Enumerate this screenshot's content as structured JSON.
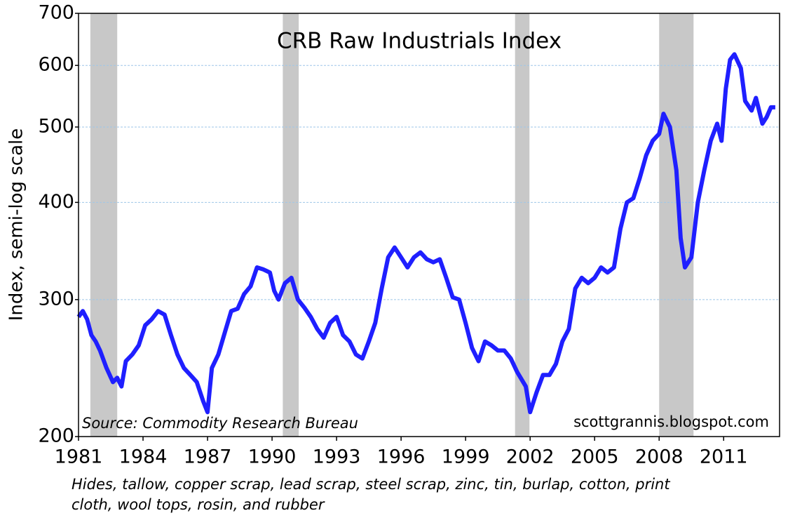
{
  "chart_data": {
    "type": "line",
    "title": "CRB Raw Industrials Index",
    "ylabel": "Index, semi-log scale",
    "source": "Source: Commodity Research Bureau",
    "credit": "scottgrannis.blogspot.com",
    "footnote": "Hides, tallow, copper scrap, lead scrap, steel scrap, zinc, tin, burlap, cotton, print cloth, wool tops, rosin, and rubber",
    "log_scale": true,
    "grid": true,
    "xlim": [
      1981,
      2013.6
    ],
    "ylim": [
      200,
      700
    ],
    "xticks": [
      1981,
      1984,
      1987,
      1990,
      1993,
      1996,
      1999,
      2002,
      2005,
      2008,
      2011
    ],
    "yticks": [
      200,
      300,
      400,
      500,
      600,
      700
    ],
    "shading_color": "#c8c8c8",
    "recessions": [
      [
        1981.55,
        1982.8
      ],
      [
        1990.5,
        1991.24
      ],
      [
        2001.3,
        2001.97
      ],
      [
        2008.0,
        2009.6
      ]
    ],
    "series": [
      {
        "name": "CRB Raw Industrials Index",
        "color": "#1f1fff",
        "x": [
          1981.0,
          1981.2,
          1981.4,
          1981.6,
          1981.8,
          1982.0,
          1982.3,
          1982.6,
          1982.8,
          1983.0,
          1983.2,
          1983.5,
          1983.8,
          1984.1,
          1984.4,
          1984.7,
          1985.0,
          1985.3,
          1985.6,
          1985.9,
          1986.2,
          1986.5,
          1986.8,
          1987.0,
          1987.2,
          1987.5,
          1987.8,
          1988.1,
          1988.4,
          1988.7,
          1989.0,
          1989.3,
          1989.6,
          1989.9,
          1990.1,
          1990.3,
          1990.6,
          1990.9,
          1991.2,
          1991.5,
          1991.8,
          1992.1,
          1992.4,
          1992.7,
          1993.0,
          1993.3,
          1993.6,
          1993.9,
          1994.2,
          1994.5,
          1994.8,
          1995.1,
          1995.4,
          1995.7,
          1996.0,
          1996.3,
          1996.6,
          1996.9,
          1997.2,
          1997.5,
          1997.8,
          1998.1,
          1998.4,
          1998.7,
          1999.0,
          1999.3,
          1999.6,
          1999.9,
          2000.2,
          2000.5,
          2000.8,
          2001.1,
          2001.4,
          2001.8,
          2002.0,
          2002.3,
          2002.6,
          2002.9,
          2003.2,
          2003.5,
          2003.8,
          2004.1,
          2004.4,
          2004.7,
          2005.0,
          2005.3,
          2005.6,
          2005.9,
          2006.2,
          2006.5,
          2006.8,
          2007.1,
          2007.4,
          2007.7,
          2008.0,
          2008.2,
          2008.5,
          2008.8,
          2009.0,
          2009.2,
          2009.5,
          2009.8,
          2010.1,
          2010.4,
          2010.7,
          2010.9,
          2011.1,
          2011.3,
          2011.5,
          2011.8,
          2012.0,
          2012.3,
          2012.5,
          2012.8,
          2013.0,
          2013.2,
          2013.4
        ],
        "values": [
          285,
          290,
          283,
          270,
          265,
          258,
          245,
          235,
          238,
          232,
          250,
          255,
          262,
          278,
          283,
          290,
          287,
          270,
          255,
          245,
          240,
          235,
          222,
          215,
          245,
          255,
          272,
          290,
          292,
          305,
          312,
          330,
          328,
          325,
          308,
          300,
          315,
          320,
          300,
          293,
          285,
          275,
          268,
          280,
          285,
          270,
          265,
          255,
          252,
          265,
          280,
          310,
          340,
          350,
          340,
          330,
          340,
          345,
          338,
          335,
          338,
          320,
          302,
          300,
          280,
          260,
          250,
          265,
          262,
          258,
          258,
          252,
          242,
          232,
          215,
          228,
          240,
          240,
          248,
          265,
          275,
          310,
          320,
          315,
          320,
          330,
          325,
          330,
          370,
          400,
          405,
          430,
          460,
          480,
          490,
          520,
          500,
          440,
          360,
          330,
          340,
          400,
          440,
          480,
          505,
          480,
          560,
          610,
          620,
          595,
          540,
          525,
          545,
          505,
          515,
          530,
          530
        ]
      }
    ]
  }
}
